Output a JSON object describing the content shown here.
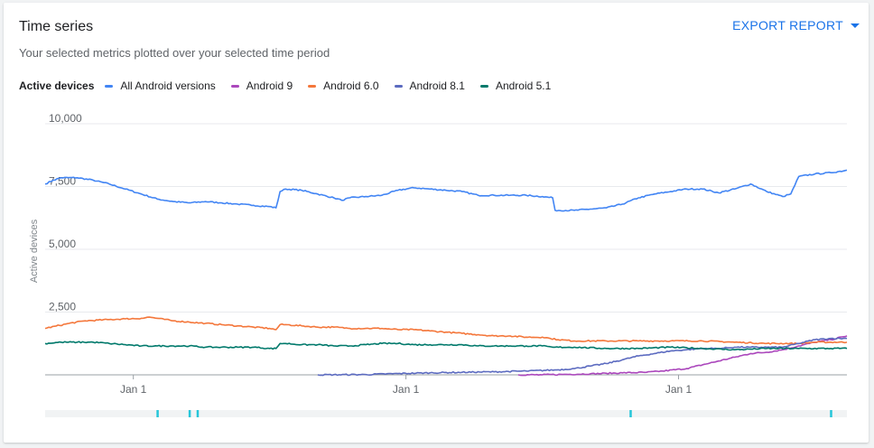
{
  "header": {
    "title": "Time series",
    "subtitle": "Your selected metrics plotted over your selected time period",
    "export_label": "EXPORT REPORT"
  },
  "legend": {
    "metric_label": "Active devices",
    "items": [
      {
        "label": "All Android versions",
        "color": "#4285f4"
      },
      {
        "label": "Android 9",
        "color": "#ab47bc"
      },
      {
        "label": "Android 6.0",
        "color": "#f4773b"
      },
      {
        "label": "Android 8.1",
        "color": "#5c6bc0"
      },
      {
        "label": "Android 5.1",
        "color": "#00796b"
      }
    ]
  },
  "chart_data": {
    "type": "line",
    "ylabel": "Active devices",
    "xlabel": "",
    "ylim": [
      0,
      10000
    ],
    "y_ticks": [
      {
        "value": 2500,
        "label": "2,500"
      },
      {
        "value": 5000,
        "label": "5,000"
      },
      {
        "value": 7500,
        "label": "7,500"
      },
      {
        "value": 10000,
        "label": "10,000"
      }
    ],
    "x_range": [
      0,
      100
    ],
    "x_ticks": [
      {
        "x": 11,
        "label": "Jan 1"
      },
      {
        "x": 45,
        "label": "Jan 1"
      },
      {
        "x": 79,
        "label": "Jan 1"
      }
    ],
    "grid": true,
    "legend_position": "top-left",
    "series": [
      {
        "name": "All Android versions",
        "color": "#4285f4",
        "points": [
          [
            0,
            7600
          ],
          [
            1,
            7750
          ],
          [
            2,
            7850
          ],
          [
            4,
            7850
          ],
          [
            6,
            7750
          ],
          [
            8,
            7600
          ],
          [
            10,
            7400
          ],
          [
            12,
            7200
          ],
          [
            14,
            7000
          ],
          [
            16,
            6900
          ],
          [
            18,
            6850
          ],
          [
            20,
            6900
          ],
          [
            22,
            6850
          ],
          [
            24,
            6800
          ],
          [
            26,
            6750
          ],
          [
            28,
            6700
          ],
          [
            28.8,
            6650
          ],
          [
            29.3,
            7300
          ],
          [
            30,
            7400
          ],
          [
            32,
            7350
          ],
          [
            34,
            7200
          ],
          [
            36,
            7050
          ],
          [
            37,
            6950
          ],
          [
            38,
            7050
          ],
          [
            40,
            7100
          ],
          [
            42,
            7150
          ],
          [
            44,
            7350
          ],
          [
            46,
            7450
          ],
          [
            48,
            7400
          ],
          [
            50,
            7350
          ],
          [
            52,
            7300
          ],
          [
            54,
            7150
          ],
          [
            56,
            7150
          ],
          [
            58,
            7150
          ],
          [
            60,
            7150
          ],
          [
            62,
            7100
          ],
          [
            63.3,
            7050
          ],
          [
            63.6,
            6550
          ],
          [
            66,
            6550
          ],
          [
            68,
            6600
          ],
          [
            70,
            6650
          ],
          [
            72,
            6800
          ],
          [
            74,
            7050
          ],
          [
            76,
            7200
          ],
          [
            78,
            7300
          ],
          [
            80,
            7400
          ],
          [
            82,
            7400
          ],
          [
            84,
            7250
          ],
          [
            86,
            7400
          ],
          [
            88,
            7600
          ],
          [
            90,
            7300
          ],
          [
            92,
            7100
          ],
          [
            93,
            7200
          ],
          [
            94,
            7900
          ],
          [
            96,
            8000
          ],
          [
            98,
            8050
          ],
          [
            100,
            8150
          ]
        ]
      },
      {
        "name": "Android 9",
        "color": "#ab47bc",
        "points": [
          [
            59,
            0
          ],
          [
            62,
            0
          ],
          [
            65,
            20
          ],
          [
            68,
            40
          ],
          [
            70,
            60
          ],
          [
            72,
            80
          ],
          [
            75,
            100
          ],
          [
            77,
            150
          ],
          [
            80,
            250
          ],
          [
            82,
            400
          ],
          [
            84,
            550
          ],
          [
            86,
            700
          ],
          [
            88,
            850
          ],
          [
            90,
            900
          ],
          [
            92,
            1000
          ],
          [
            94,
            1150
          ],
          [
            96,
            1300
          ],
          [
            98,
            1400
          ],
          [
            100,
            1550
          ]
        ]
      },
      {
        "name": "Android 6.0",
        "color": "#f4773b",
        "points": [
          [
            0,
            1850
          ],
          [
            3,
            2050
          ],
          [
            5,
            2150
          ],
          [
            8,
            2200
          ],
          [
            10,
            2230
          ],
          [
            12,
            2250
          ],
          [
            13,
            2300
          ],
          [
            14,
            2250
          ],
          [
            16,
            2150
          ],
          [
            18,
            2100
          ],
          [
            20,
            2050
          ],
          [
            22,
            2000
          ],
          [
            24,
            1950
          ],
          [
            26,
            1900
          ],
          [
            28,
            1850
          ],
          [
            28.8,
            1800
          ],
          [
            29.3,
            2000
          ],
          [
            30,
            2000
          ],
          [
            32,
            1950
          ],
          [
            34,
            1900
          ],
          [
            36,
            1900
          ],
          [
            38,
            1850
          ],
          [
            40,
            1850
          ],
          [
            42,
            1850
          ],
          [
            44,
            1800
          ],
          [
            46,
            1800
          ],
          [
            48,
            1750
          ],
          [
            50,
            1700
          ],
          [
            52,
            1650
          ],
          [
            54,
            1600
          ],
          [
            56,
            1550
          ],
          [
            58,
            1550
          ],
          [
            60,
            1500
          ],
          [
            62,
            1500
          ],
          [
            63,
            1450
          ],
          [
            64,
            1400
          ],
          [
            66,
            1350
          ],
          [
            70,
            1350
          ],
          [
            74,
            1350
          ],
          [
            78,
            1350
          ],
          [
            82,
            1350
          ],
          [
            86,
            1300
          ],
          [
            90,
            1250
          ],
          [
            94,
            1250
          ],
          [
            96,
            1300
          ],
          [
            100,
            1300
          ]
        ]
      },
      {
        "name": "Android 8.1",
        "color": "#5c6bc0",
        "points": [
          [
            34,
            0
          ],
          [
            40,
            10
          ],
          [
            44,
            50
          ],
          [
            48,
            80
          ],
          [
            52,
            100
          ],
          [
            56,
            120
          ],
          [
            60,
            150
          ],
          [
            64,
            200
          ],
          [
            66,
            250
          ],
          [
            68,
            350
          ],
          [
            70,
            450
          ],
          [
            72,
            600
          ],
          [
            74,
            750
          ],
          [
            76,
            850
          ],
          [
            78,
            950
          ],
          [
            80,
            1000
          ],
          [
            82,
            1050
          ],
          [
            84,
            1050
          ],
          [
            86,
            1100
          ],
          [
            88,
            1100
          ],
          [
            90,
            1100
          ],
          [
            92,
            1100
          ],
          [
            94,
            1250
          ],
          [
            96,
            1400
          ],
          [
            98,
            1450
          ],
          [
            100,
            1450
          ]
        ]
      },
      {
        "name": "Android 5.1",
        "color": "#00796b",
        "points": [
          [
            0,
            1250
          ],
          [
            2,
            1300
          ],
          [
            4,
            1300
          ],
          [
            6,
            1300
          ],
          [
            8,
            1250
          ],
          [
            10,
            1200
          ],
          [
            12,
            1150
          ],
          [
            14,
            1150
          ],
          [
            16,
            1150
          ],
          [
            18,
            1150
          ],
          [
            20,
            1100
          ],
          [
            22,
            1100
          ],
          [
            24,
            1100
          ],
          [
            26,
            1100
          ],
          [
            28,
            1050
          ],
          [
            28.8,
            1050
          ],
          [
            29.3,
            1250
          ],
          [
            30,
            1250
          ],
          [
            32,
            1200
          ],
          [
            34,
            1200
          ],
          [
            36,
            1150
          ],
          [
            38,
            1150
          ],
          [
            40,
            1200
          ],
          [
            42,
            1250
          ],
          [
            44,
            1250
          ],
          [
            46,
            1200
          ],
          [
            48,
            1200
          ],
          [
            50,
            1200
          ],
          [
            52,
            1200
          ],
          [
            54,
            1150
          ],
          [
            56,
            1150
          ],
          [
            58,
            1150
          ],
          [
            60,
            1150
          ],
          [
            62,
            1150
          ],
          [
            63.3,
            1100
          ],
          [
            63.6,
            1100
          ],
          [
            66,
            1100
          ],
          [
            70,
            1050
          ],
          [
            74,
            1050
          ],
          [
            78,
            1100
          ],
          [
            82,
            1050
          ],
          [
            86,
            1000
          ],
          [
            90,
            1050
          ],
          [
            94,
            1050
          ],
          [
            98,
            1050
          ],
          [
            100,
            1050
          ]
        ]
      }
    ],
    "annotation_x": [
      14,
      18,
      19,
      73,
      98
    ]
  }
}
